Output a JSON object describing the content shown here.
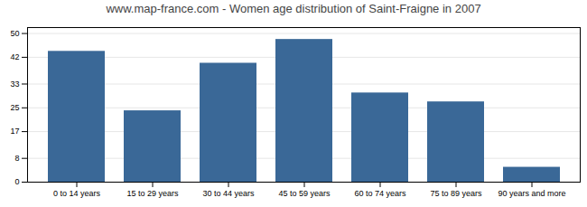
{
  "chart_data": {
    "type": "bar",
    "title": "www.map-france.com - Women age distribution of Saint-Fraigne in 2007",
    "categories": [
      "0 to 14 years",
      "15 to 29 years",
      "30 to 44 years",
      "45 to 59 years",
      "60 to 74 years",
      "75 to 89 years",
      "90 years and more"
    ],
    "values": [
      44,
      24,
      40,
      48,
      30,
      27,
      5
    ],
    "color": "#3a6897",
    "ylim": [
      0,
      52
    ],
    "yticks": [
      0,
      8,
      17,
      25,
      33,
      42,
      50
    ],
    "grid": true
  }
}
